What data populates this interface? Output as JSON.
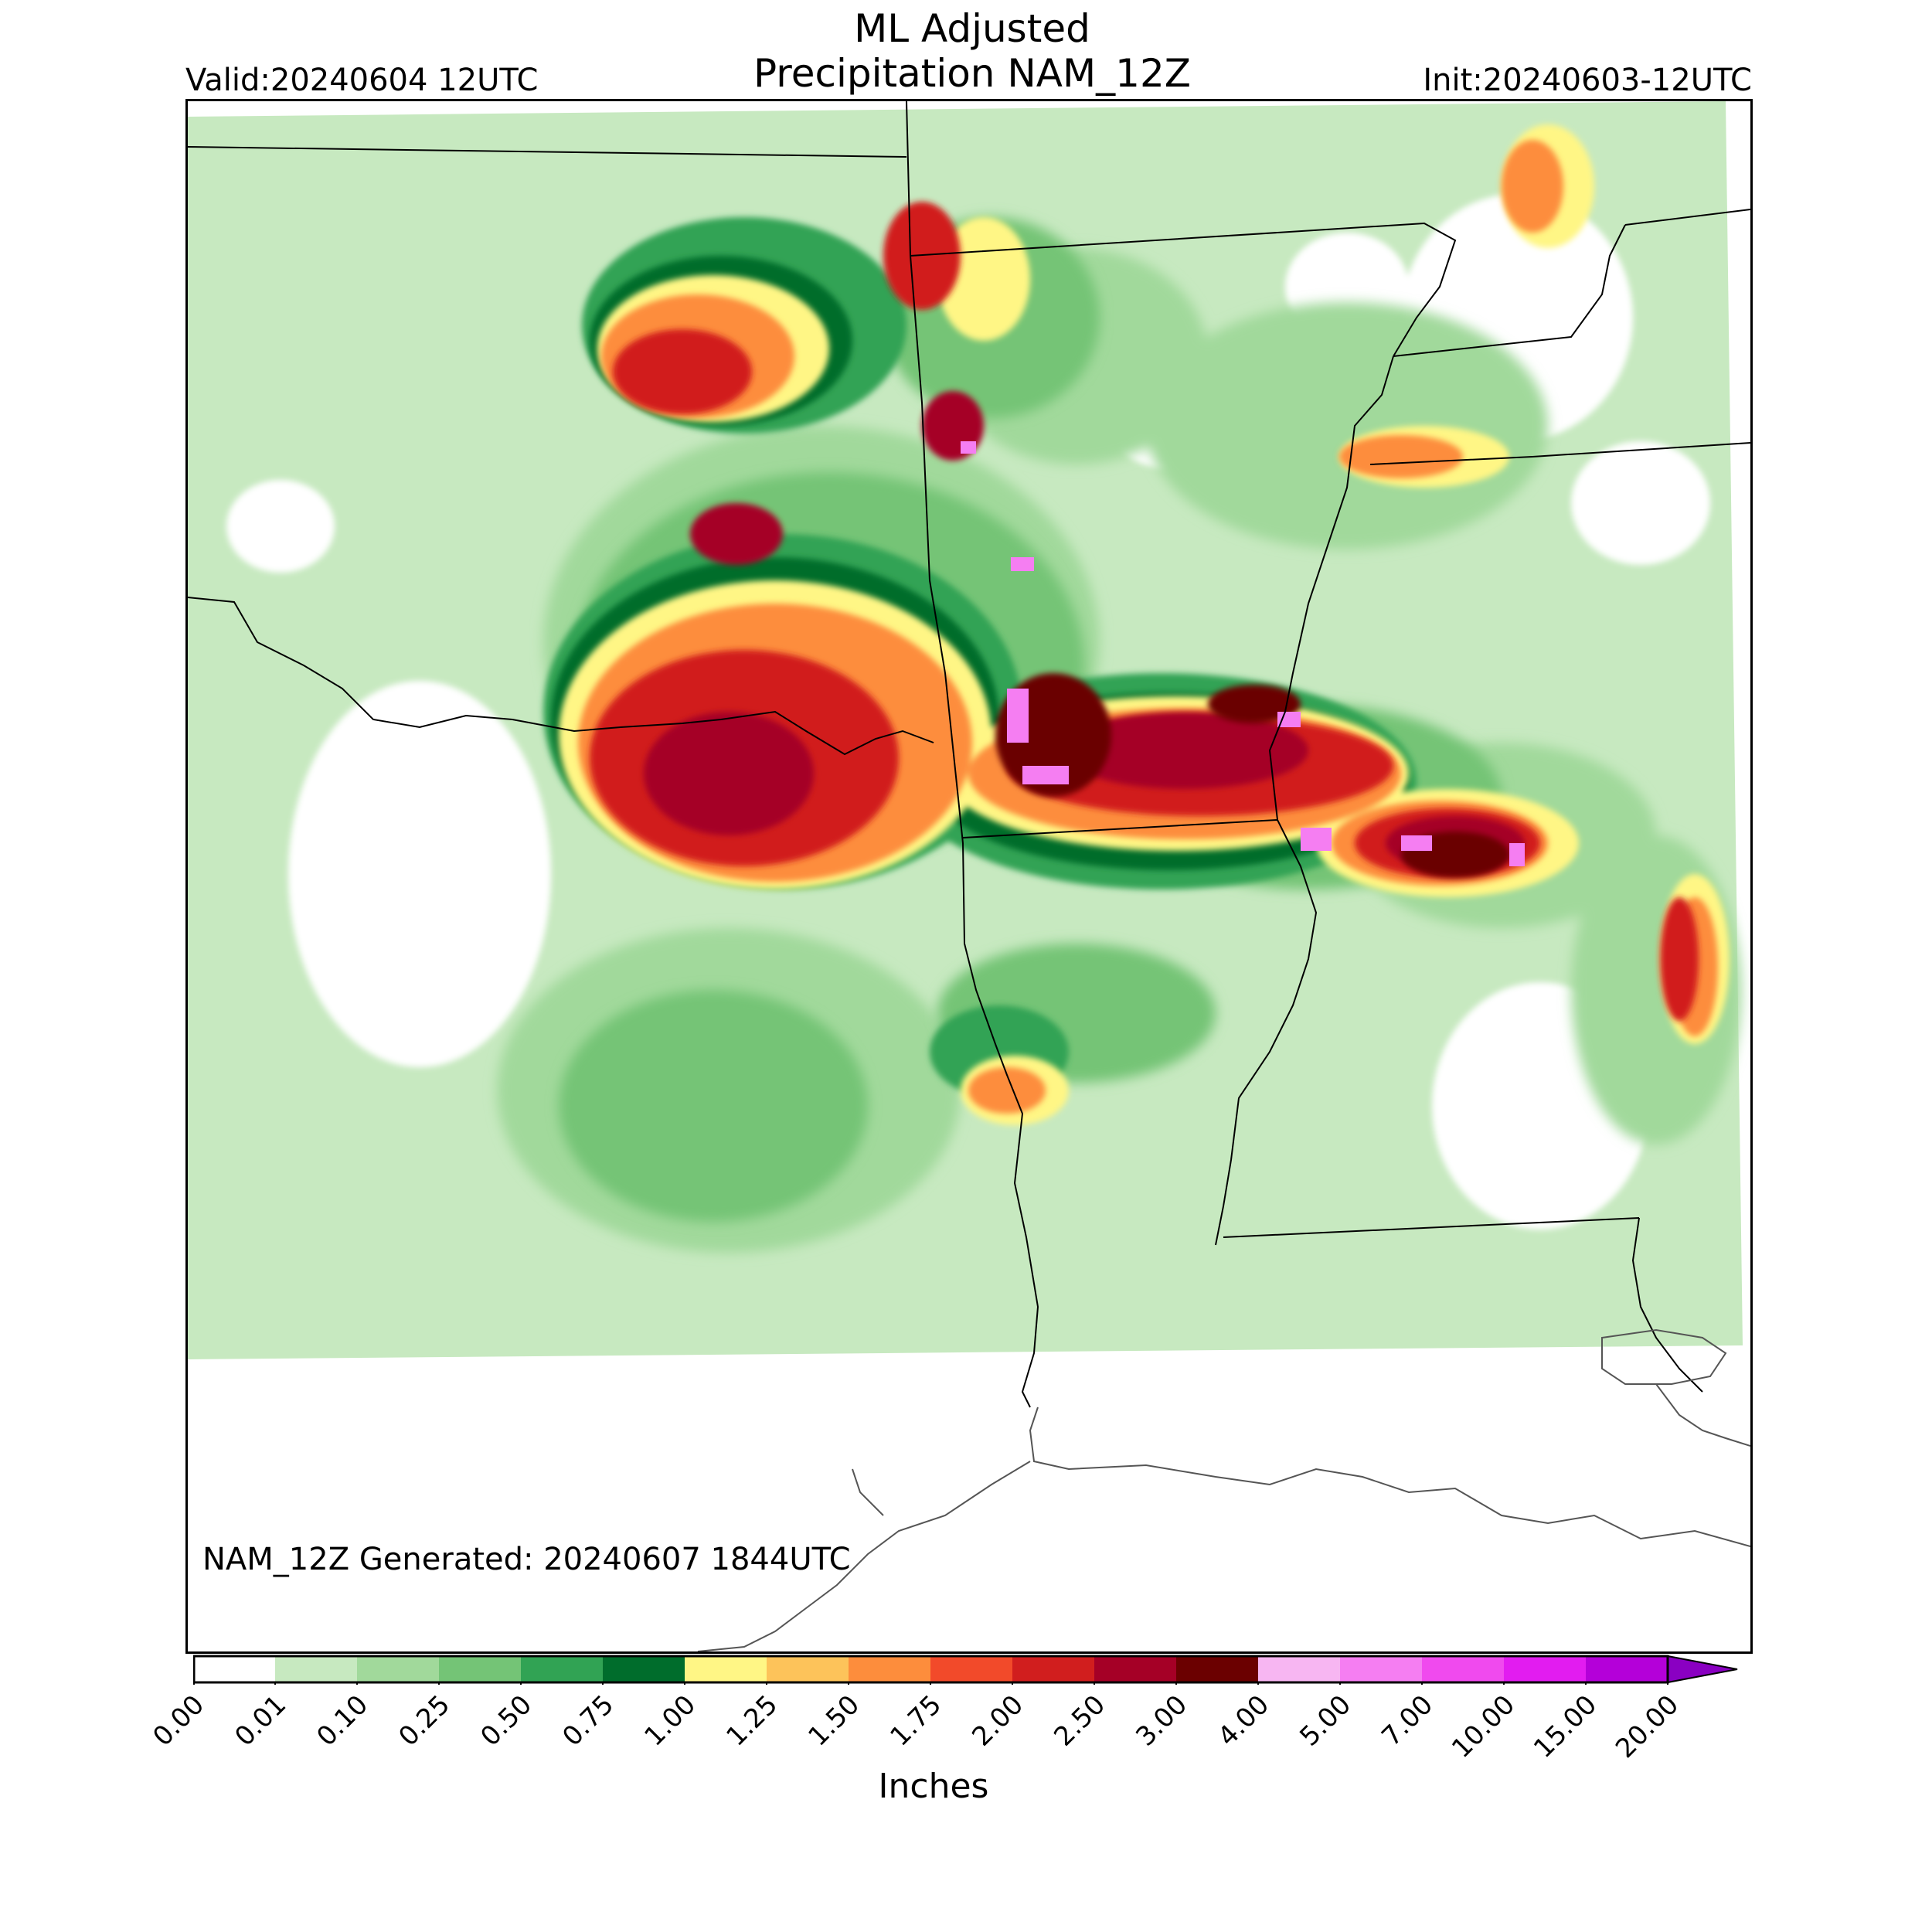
{
  "title": [
    "ML Adjusted",
    "Precipitation NAM_12Z"
  ],
  "valid_text": "Valid:20240604 12UTC",
  "init_text": "Init:20240603-12UTC",
  "generated_text": "NAM_12Z Generated: 20240607 1844UTC",
  "colorbar": {
    "label": "Inches",
    "ticks": [
      "0.00",
      "0.01",
      "0.10",
      "0.25",
      "0.50",
      "0.75",
      "1.00",
      "1.25",
      "1.50",
      "1.75",
      "2.00",
      "2.50",
      "3.00",
      "4.00",
      "5.00",
      "7.00",
      "10.00",
      "15.00",
      "20.00"
    ],
    "colors": [
      "#ffffff",
      "#c7e9c0",
      "#a1d99b",
      "#74c476",
      "#31a354",
      "#006d2c",
      "#fff685",
      "#fdc35a",
      "#fd8d3c",
      "#f24a2a",
      "#d11e1e",
      "#a50026",
      "#6b0000",
      "#f7b6f2",
      "#f57ef2",
      "#f04aee",
      "#e21cf0",
      "#b400d9",
      "#8a00c2"
    ],
    "extend": "max"
  }
}
